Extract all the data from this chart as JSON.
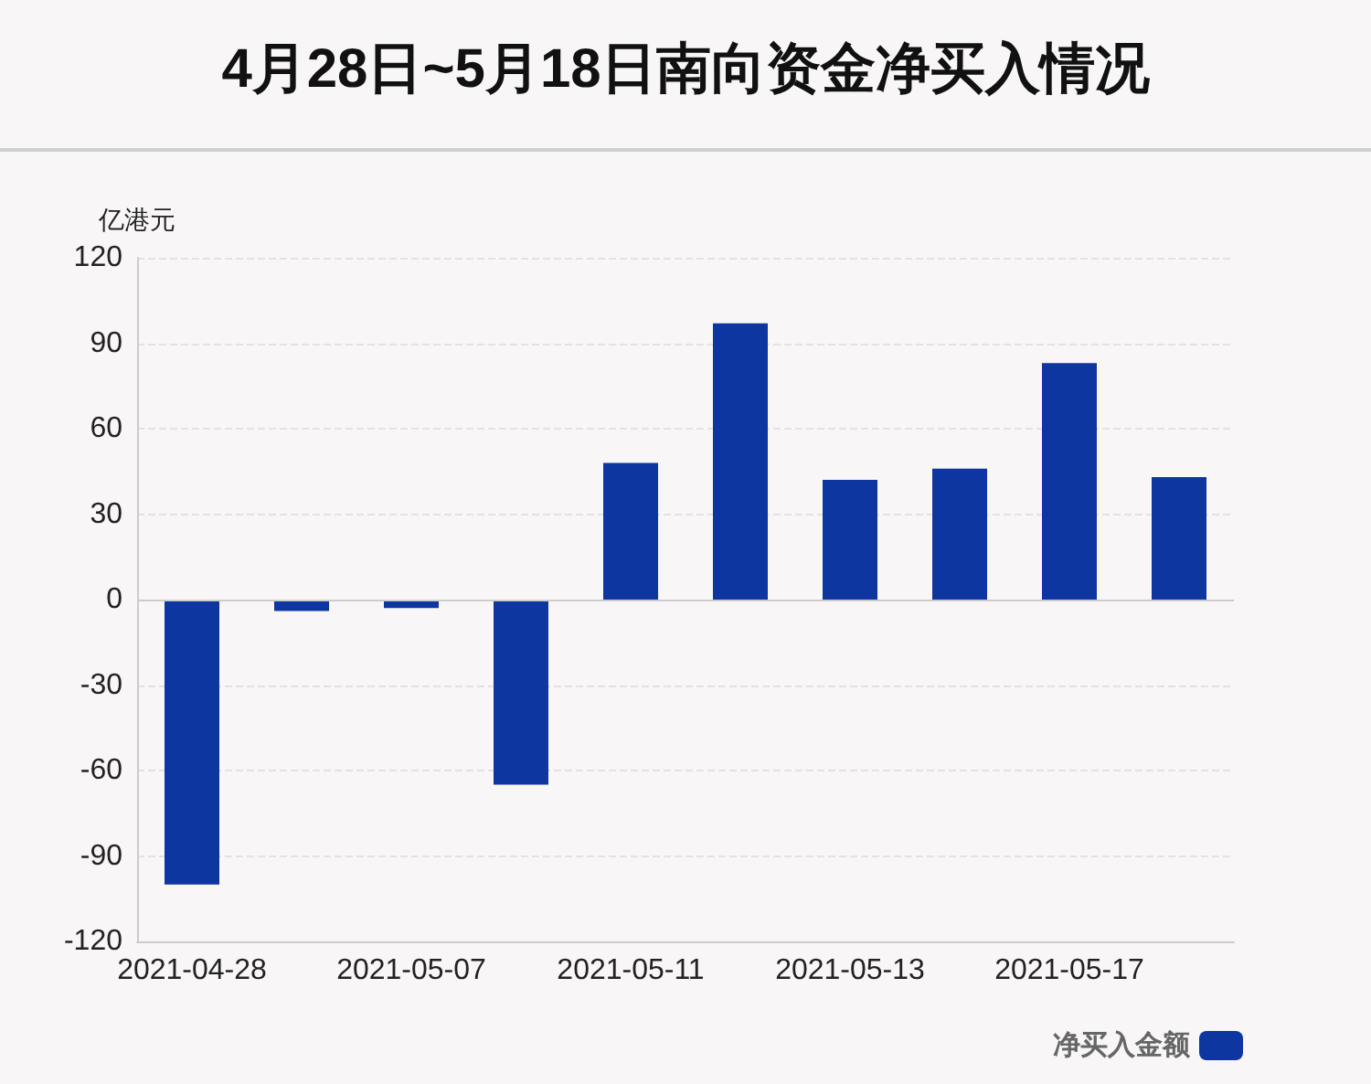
{
  "chart_data": {
    "type": "bar",
    "title": "4月28日~5月18日南向资金净买入情况",
    "ylabel": "亿港元",
    "categories": [
      "2021-04-28",
      null,
      "2021-05-07",
      null,
      "2021-05-11",
      null,
      "2021-05-13",
      null,
      "2021-05-17",
      null
    ],
    "series": [
      {
        "name": "净买入金额",
        "color": "#0d36a0",
        "values": [
          -100,
          -4,
          -3,
          -65,
          48,
          97,
          42,
          46,
          83,
          43
        ]
      }
    ],
    "ylim": [
      -120,
      120
    ],
    "yticks": [
      -120,
      -90,
      -60,
      -30,
      0,
      30,
      60,
      90,
      120
    ],
    "grid": "y",
    "legend": "bottom right"
  }
}
